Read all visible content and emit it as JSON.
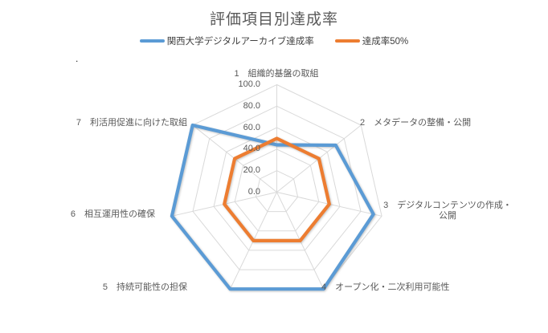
{
  "chart_data": {
    "type": "radar",
    "title": "評価項目別達成率",
    "legend_position": "top",
    "grid": true,
    "categories": [
      "1　組織的基盤の取組",
      "2　メタデータの整備・公開",
      "3　デジタルコンテンツの作成・\n公開",
      "4　オープン化・二次利用可能性",
      "5　持続可能性の担保",
      "6　相互運用性の確保",
      "7　利活用促進に向けた取組"
    ],
    "series": [
      {
        "name": "関西大学デジタルアーカイブ達成率",
        "color": "#5B9BD5",
        "values": [
          44,
          70,
          92,
          100,
          100,
          100,
          100
        ]
      },
      {
        "name": "達成率50%",
        "color": "#ED7D31",
        "values": [
          50,
          50,
          50,
          50,
          50,
          50,
          50
        ]
      }
    ],
    "radial_axis": {
      "min": 0,
      "max": 100,
      "step": 20,
      "tick_labels": [
        "100.0",
        "80.0",
        "60.0",
        "40.0",
        "20.0",
        "0.0"
      ]
    },
    "colors": {
      "gridline": "#D9D9D9",
      "axis_text": "#595959",
      "title_text": "#595959",
      "legend_text": "#404040"
    }
  },
  "misc": {
    "stray_mark": "."
  }
}
